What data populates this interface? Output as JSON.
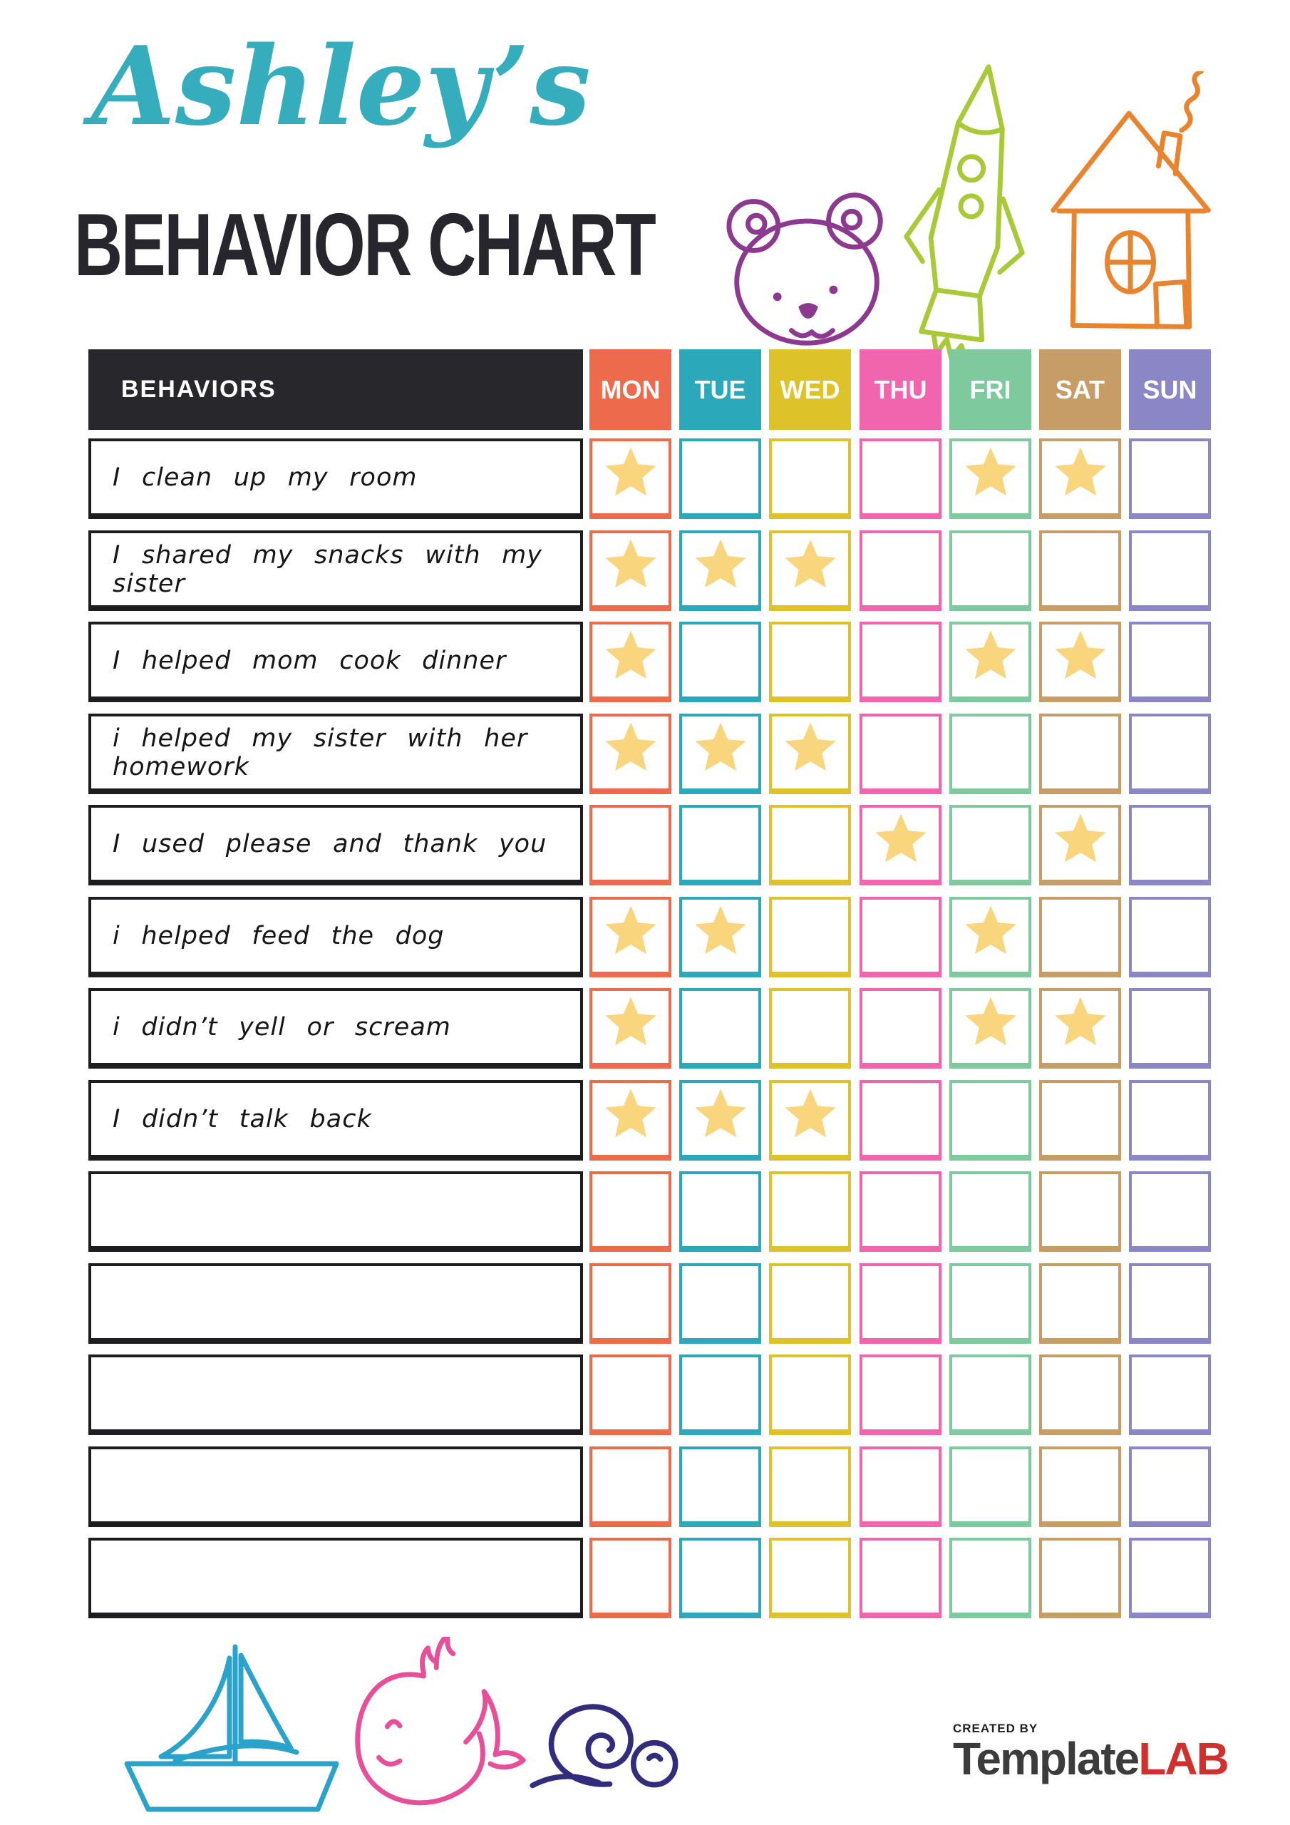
{
  "title": {
    "name": "Ashley’s",
    "subtitle": "BEHAVIOR CHART"
  },
  "table": {
    "behaviors_header": "BEHAVIORS",
    "days": [
      {
        "label": "MON",
        "color": "#ED6A4C"
      },
      {
        "label": "TUE",
        "color": "#2CA8BB"
      },
      {
        "label": "WED",
        "color": "#DDC229"
      },
      {
        "label": "THU",
        "color": "#F165AF"
      },
      {
        "label": "FRI",
        "color": "#7FC99E"
      },
      {
        "label": "SAT",
        "color": "#C69C67"
      },
      {
        "label": "SUN",
        "color": "#8B86C6"
      }
    ],
    "rows": [
      {
        "label": "I clean up my room",
        "stars": [
          0,
          4,
          5
        ]
      },
      {
        "label": "I shared my snacks with my sister",
        "stars": [
          0,
          1,
          2
        ]
      },
      {
        "label": "I helped mom cook dinner",
        "stars": [
          0,
          4,
          5
        ]
      },
      {
        "label": "i helped my sister with her homework",
        "stars": [
          0,
          1,
          2
        ]
      },
      {
        "label": "I used please and thank you",
        "stars": [
          3,
          5
        ]
      },
      {
        "label": "i helped feed the dog",
        "stars": [
          0,
          1,
          4
        ]
      },
      {
        "label": "i didn’t yell or scream",
        "stars": [
          0,
          4,
          5
        ]
      },
      {
        "label": "I didn’t talk back",
        "stars": [
          0,
          1,
          2
        ]
      },
      {
        "label": "",
        "stars": []
      },
      {
        "label": "",
        "stars": []
      },
      {
        "label": "",
        "stars": []
      },
      {
        "label": "",
        "stars": []
      },
      {
        "label": "",
        "stars": []
      }
    ]
  },
  "footer": {
    "created_by": "CREATED BY",
    "brand_template": "Template",
    "brand_lab": "LAB"
  },
  "icons": [
    {
      "name": "bear-icon",
      "depicts": "teddy bear face doodle"
    },
    {
      "name": "rocket-icon",
      "depicts": "rocket ship doodle"
    },
    {
      "name": "house-icon",
      "depicts": "house with chimney smoke doodle"
    },
    {
      "name": "sailboat-icon",
      "depicts": "sailboat doodle"
    },
    {
      "name": "whale-icon",
      "depicts": "whale with spout doodle"
    },
    {
      "name": "snail-icon",
      "depicts": "snail doodle"
    },
    {
      "name": "star-icon",
      "depicts": "gold reward star"
    }
  ],
  "colors": {
    "title_accent": "#35ADBD",
    "subtitle_text": "#26262C",
    "header_bg": "#28272B",
    "row_border": "#1D1D1F",
    "star": "#F9D67E",
    "bear": "#8C3A8F",
    "rocket": "#A9C938",
    "house": "#E8832E",
    "sailboat": "#2BA2C9",
    "whale": "#E74F9B",
    "snail": "#322C7C",
    "brand_dark": "#3C3C3C",
    "brand_red": "#CE312E",
    "created_by_text": "#1F1F1F"
  }
}
